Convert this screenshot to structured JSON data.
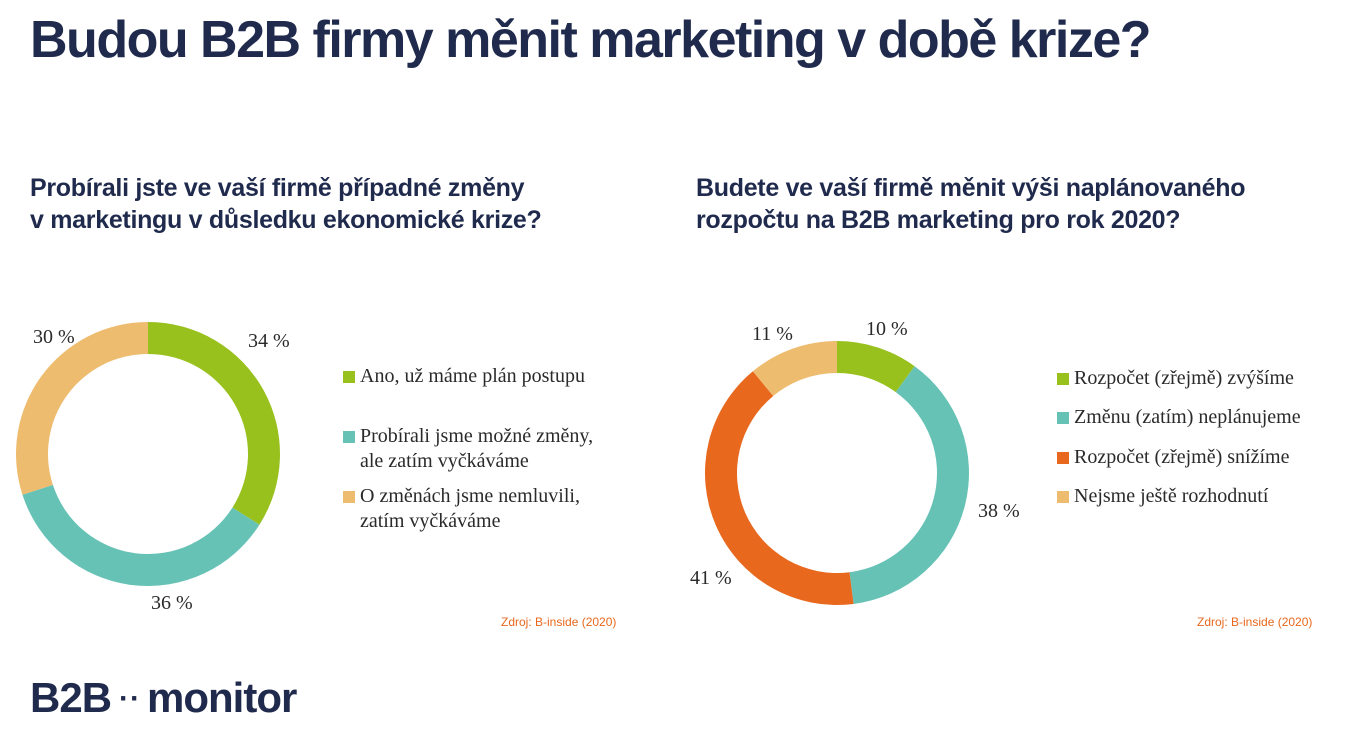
{
  "title": "Budou B2B firmy měnit marketing v době krize?",
  "colors": {
    "green": "#98c11e",
    "teal": "#67c2b6",
    "orange": "#e8681e",
    "sand": "#eebc6f",
    "navy": "#1f2a4d",
    "source": "#e8681e"
  },
  "chart_data": [
    {
      "type": "pie",
      "title_lines": [
        "Probírali jste ve vaší firmě případné změny",
        "v marketingu v důsledku ekonomické krize?"
      ],
      "categories": [
        "Ano, už máme plán postupu",
        "Probírali jsme možné změny, ale zatím vyčkáváme",
        "O změnách jsme nemluvili, zatím vyčkáváme"
      ],
      "values": [
        34,
        36,
        30
      ],
      "value_labels": [
        "34 %",
        "36 %",
        "30 %"
      ],
      "colors": [
        "#98c11e",
        "#67c2b6",
        "#eebc6f"
      ],
      "legend": [
        {
          "lines": [
            "Ano, už máme plán postupu"
          ]
        },
        {
          "lines": [
            "Probírali jsme možné změny,",
            "ale zatím vyčkáváme"
          ]
        },
        {
          "lines": [
            "O změnách jsme nemluvili,",
            "zatím vyčkáváme"
          ]
        }
      ],
      "legend_position": "right",
      "source": "Zdroj: B-inside (2020)"
    },
    {
      "type": "pie",
      "title_lines": [
        "Budete ve vaší firmě měnit výši naplánovaného",
        "rozpočtu na B2B marketing pro rok 2020?"
      ],
      "categories": [
        "Rozpočet (zřejmě) zvýšíme",
        "Změnu (zatím) neplánujeme",
        "Rozpočet (zřejmě) snížíme",
        "Nejsme ještě rozhodnutí"
      ],
      "values": [
        10,
        38,
        41,
        11
      ],
      "value_labels": [
        "10 %",
        "38 %",
        "41 %",
        "11 %"
      ],
      "colors": [
        "#98c11e",
        "#67c2b6",
        "#e8681e",
        "#eebc6f"
      ],
      "legend": [
        {
          "lines": [
            "Rozpočet (zřejmě) zvýšíme"
          ]
        },
        {
          "lines": [
            "Změnu (zatím) neplánujeme"
          ]
        },
        {
          "lines": [
            "Rozpočet (zřejmě) snížíme"
          ]
        },
        {
          "lines": [
            "Nejsme ještě rozhodnutí"
          ]
        }
      ],
      "legend_position": "right",
      "source": "Zdroj: B-inside (2020)"
    }
  ],
  "logo": {
    "left": "B2B",
    "dots": "··",
    "right": "monitor"
  }
}
